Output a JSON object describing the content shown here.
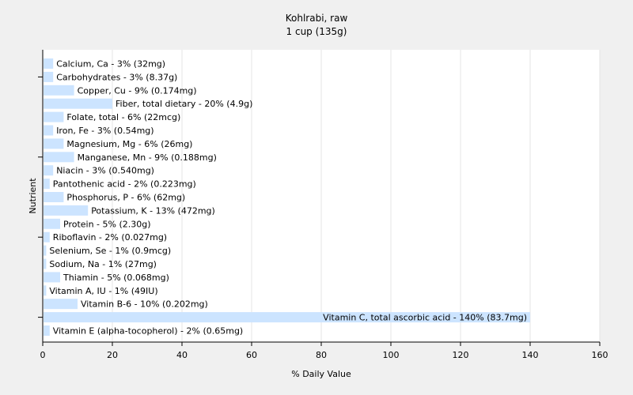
{
  "chart_data": {
    "type": "bar",
    "orientation": "horizontal",
    "title": "Kohlrabi, raw",
    "subtitle": "1 cup (135g)",
    "xlabel": "% Daily Value",
    "ylabel": "Nutrient",
    "xlim": [
      0,
      160
    ],
    "xticks": [
      0,
      20,
      40,
      60,
      80,
      100,
      120,
      140,
      160
    ],
    "grid": true,
    "bar_color": "#cce4ff",
    "grid_color": "#e4e4e4",
    "categories": [
      "Calcium, Ca - 3% (32mg)",
      "Carbohydrates - 3% (8.37g)",
      "Copper, Cu - 9% (0.174mg)",
      "Fiber, total dietary - 20% (4.9g)",
      "Folate, total - 6% (22mcg)",
      "Iron, Fe - 3% (0.54mg)",
      "Magnesium, Mg - 6% (26mg)",
      "Manganese, Mn - 9% (0.188mg)",
      "Niacin - 3% (0.540mg)",
      "Pantothenic acid - 2% (0.223mg)",
      "Phosphorus, P - 6% (62mg)",
      "Potassium, K - 13% (472mg)",
      "Protein - 5% (2.30g)",
      "Riboflavin - 2% (0.027mg)",
      "Selenium, Se - 1% (0.9mcg)",
      "Sodium, Na - 1% (27mg)",
      "Thiamin - 5% (0.068mg)",
      "Vitamin A, IU - 1% (49IU)",
      "Vitamin B-6 - 10% (0.202mg)",
      "Vitamin C, total ascorbic acid - 140% (83.7mg)",
      "Vitamin E (alpha-tocopherol) - 2% (0.65mg)"
    ],
    "values": [
      3,
      3,
      9,
      20,
      6,
      3,
      6,
      9,
      3,
      2,
      6,
      13,
      5,
      2,
      1,
      1,
      5,
      1,
      10,
      140,
      2
    ]
  }
}
